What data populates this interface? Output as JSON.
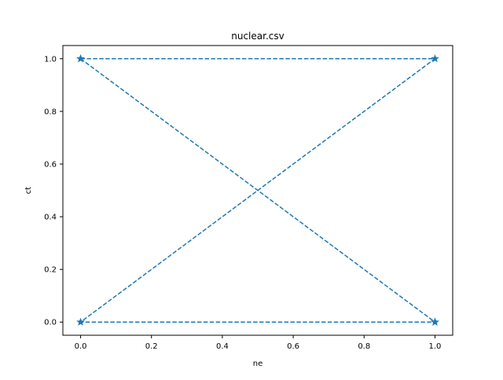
{
  "chart_data": {
    "type": "line",
    "title": "nuclear.csv",
    "xlabel": "ne",
    "ylabel": "ct",
    "xlim": [
      -0.05,
      1.05
    ],
    "ylim": [
      -0.05,
      1.05
    ],
    "xticks": [
      0.0,
      0.2,
      0.4,
      0.6,
      0.8,
      1.0
    ],
    "yticks": [
      0.0,
      0.2,
      0.4,
      0.6,
      0.8,
      1.0
    ],
    "xtick_labels": [
      "0.0",
      "0.2",
      "0.4",
      "0.6",
      "0.8",
      "1.0"
    ],
    "ytick_labels": [
      "0.0",
      "0.2",
      "0.4",
      "0.6",
      "0.8",
      "1.0"
    ],
    "grid": false,
    "legend": "none",
    "series": [
      {
        "x": [
          0,
          1,
          0,
          1
        ],
        "y": [
          1,
          1,
          0,
          0
        ],
        "line_style": "dashed",
        "marker": "star",
        "color": "#1f77b4"
      },
      {
        "x": [
          0,
          1
        ],
        "y": [
          1,
          0
        ],
        "line_style": "dashed",
        "marker": "star",
        "color": "#1f77b4"
      }
    ]
  }
}
